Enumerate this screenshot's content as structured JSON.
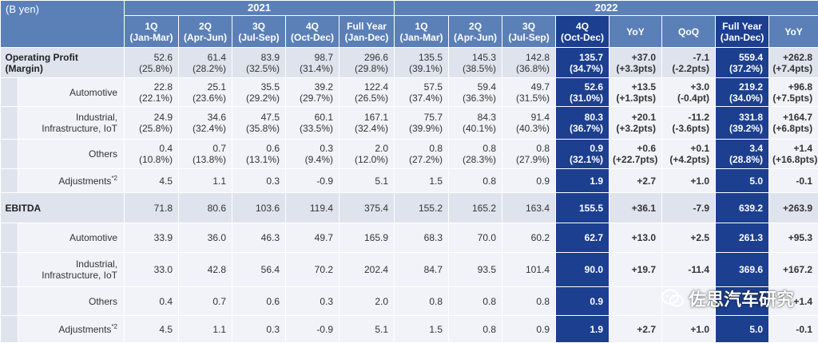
{
  "unit_label": "(B yen)",
  "years": [
    "2021",
    "2022"
  ],
  "columns": [
    {
      "label": "1Q",
      "sub": "(Jan-Mar)"
    },
    {
      "label": "2Q",
      "sub": "(Apr-Jun)"
    },
    {
      "label": "3Q",
      "sub": "(Jul-Sep)"
    },
    {
      "label": "4Q",
      "sub": "(Oct-Dec)"
    },
    {
      "label": "Full Year",
      "sub": "(Jan-Dec)"
    },
    {
      "label": "1Q",
      "sub": "(Jan-Mar)"
    },
    {
      "label": "2Q",
      "sub": "(Apr-Jun)"
    },
    {
      "label": "3Q",
      "sub": "(Jul-Sep)"
    },
    {
      "label": "4Q",
      "sub": "(Oct-Dec)"
    },
    {
      "label": "YoY",
      "sub": ""
    },
    {
      "label": "QoQ",
      "sub": ""
    },
    {
      "label": "Full Year",
      "sub": "(Jan-Dec)"
    },
    {
      "label": "YoY",
      "sub": ""
    }
  ],
  "rows": [
    {
      "label": "Operating Profit\n(Margin)",
      "kind": "main",
      "values": [
        "52.6",
        "61.4",
        "83.9",
        "98.7",
        "296.6",
        "135.5",
        "145.3",
        "142.8",
        "135.7",
        "+37.0",
        "-7.1",
        "559.4",
        "+262.8"
      ],
      "margins": [
        "(25.8%)",
        "(28.2%)",
        "(32.5%)",
        "(31.4%)",
        "(29.8%)",
        "(39.1%)",
        "(38.5%)",
        "(36.8%)",
        "(34.7%)",
        "(+3.3pts)",
        "(-2.2pts)",
        "(37.2%)",
        "(+7.4pts)"
      ]
    },
    {
      "label": "Automotive",
      "kind": "sub",
      "values": [
        "22.8",
        "25.1",
        "35.5",
        "39.2",
        "122.4",
        "57.5",
        "59.4",
        "49.7",
        "52.6",
        "+13.5",
        "+3.0",
        "219.2",
        "+96.8"
      ],
      "margins": [
        "(22.1%)",
        "(23.6%)",
        "(29.2%)",
        "(29.7%)",
        "(26.5%)",
        "(37.4%)",
        "(36.3%)",
        "(31.5%)",
        "(31.0%)",
        "(+1.3pts)",
        "(-0.4pt)",
        "(34.0%)",
        "(+7.5pts)"
      ]
    },
    {
      "label": "Industrial,\nInfrastructure, IoT",
      "kind": "sub",
      "values": [
        "24.9",
        "34.6",
        "47.5",
        "60.1",
        "167.1",
        "75.7",
        "84.3",
        "91.4",
        "80.3",
        "+20.1",
        "-11.2",
        "331.8",
        "+164.7"
      ],
      "margins": [
        "(25.8%)",
        "(32.4%)",
        "(35.8%)",
        "(33.5%)",
        "(32.4%)",
        "(39.9%)",
        "(40.1%)",
        "(40.3%)",
        "(36.7%)",
        "(+3.2pts)",
        "(-3.6pts)",
        "(39.2%)",
        "(+6.8pts)"
      ]
    },
    {
      "label": "Others",
      "kind": "sub",
      "values": [
        "0.4",
        "0.7",
        "0.6",
        "0.3",
        "2.0",
        "0.8",
        "0.8",
        "0.8",
        "0.9",
        "+0.6",
        "+0.1",
        "3.4",
        "+1.4"
      ],
      "margins": [
        "(10.8%)",
        "(13.8%)",
        "(13.1%)",
        "(9.4%)",
        "(12.0%)",
        "(27.2%)",
        "(28.3%)",
        "(27.9%)",
        "(32.1%)",
        "(+22.7pts)",
        "(+4.2pts)",
        "(28.8%)",
        "(+16.8pts)"
      ]
    },
    {
      "label": "Adjustments",
      "sup": "*2",
      "kind": "sub",
      "values": [
        "4.5",
        "1.1",
        "0.3",
        "-0.9",
        "5.1",
        "1.5",
        "0.8",
        "0.9",
        "1.9",
        "+2.7",
        "+1.0",
        "5.0",
        "-0.1"
      ],
      "margins": null
    },
    {
      "label": "EBITDA",
      "kind": "main",
      "values": [
        "71.8",
        "80.6",
        "103.6",
        "119.4",
        "375.4",
        "155.2",
        "165.2",
        "163.4",
        "155.5",
        "+36.1",
        "-7.9",
        "639.2",
        "+263.9"
      ],
      "margins": null
    },
    {
      "label": "Automotive",
      "kind": "sub",
      "values": [
        "33.9",
        "36.0",
        "46.3",
        "49.7",
        "165.9",
        "68.3",
        "70.0",
        "60.2",
        "62.7",
        "+13.0",
        "+2.5",
        "261.3",
        "+95.3"
      ],
      "margins": null
    },
    {
      "label": "Industrial,\nInfrastructure, IoT",
      "kind": "sub",
      "values": [
        "33.0",
        "42.8",
        "56.4",
        "70.2",
        "202.4",
        "84.7",
        "93.5",
        "101.4",
        "90.0",
        "+19.7",
        "-11.4",
        "369.6",
        "+167.2"
      ],
      "margins": null
    },
    {
      "label": "Others",
      "kind": "sub",
      "values": [
        "0.4",
        "0.7",
        "0.6",
        "0.3",
        "2.0",
        "0.8",
        "0.8",
        "0.8",
        "0.9",
        "",
        "",
        "",
        "+1.4"
      ],
      "margins": null
    },
    {
      "label": "Adjustments",
      "sup": "*2",
      "kind": "sub",
      "values": [
        "4.5",
        "1.1",
        "0.3",
        "-0.9",
        "5.1",
        "1.5",
        "0.8",
        "0.9",
        "1.9",
        "+2.7",
        "+1.0",
        "5.0",
        "-0.1"
      ],
      "margins": null
    }
  ],
  "watermark": "佐思汽车研究",
  "colors": {
    "header": "#5b80b8",
    "highlight": "#1c3f8f",
    "main_row": "#dfe3ee",
    "sub_row": "#f1f3f8"
  }
}
